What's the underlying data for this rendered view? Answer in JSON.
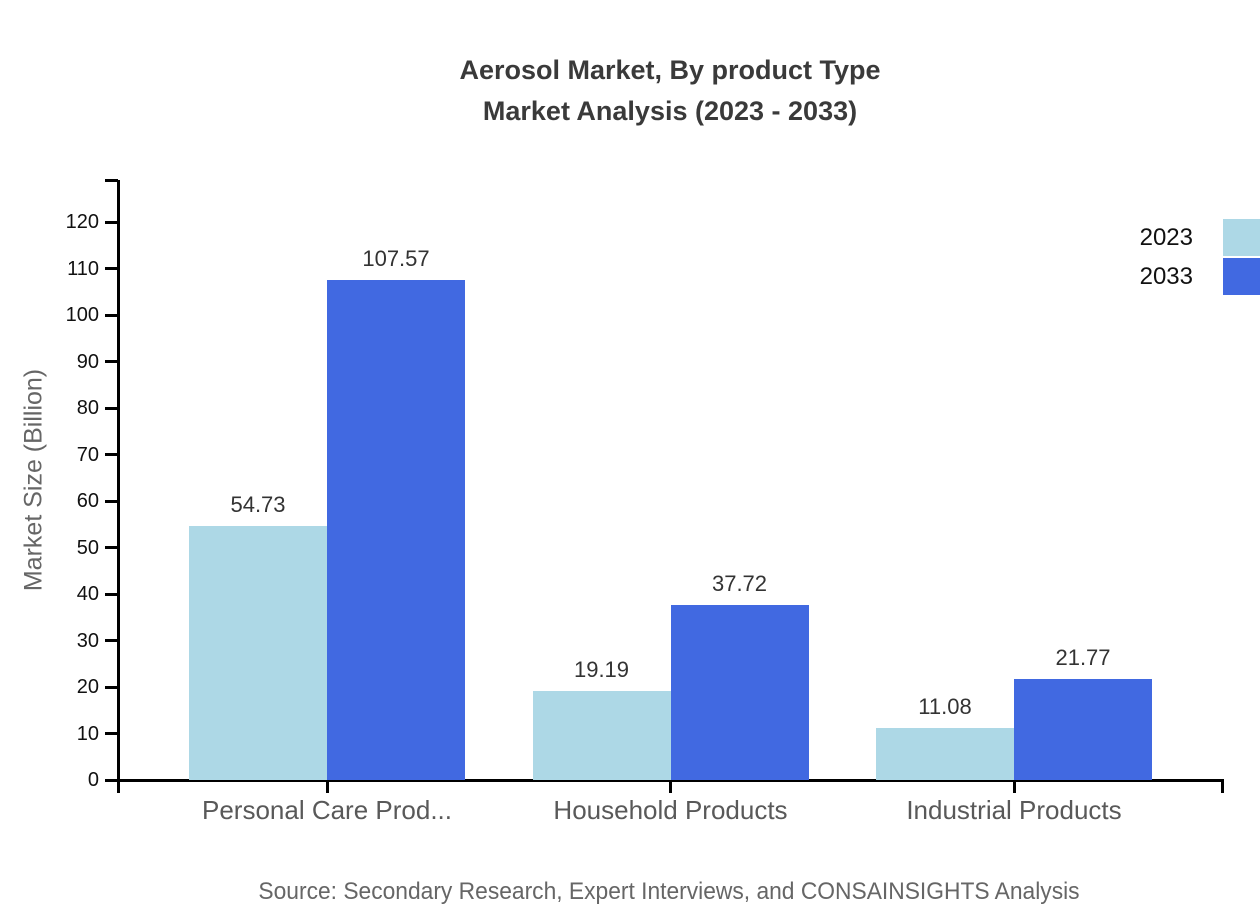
{
  "title": {
    "line1": "Aerosol Market, By product Type",
    "line2": "Market Analysis (2023 - 2033)"
  },
  "source": "Source: Secondary Research, Expert Interviews, and CONSAINSIGHTS Analysis",
  "colors": {
    "series_2023": "#ADD8E6",
    "series_2033": "#4169E1",
    "axis": "#000000",
    "title_text": "#3A3A3A",
    "category_text": "#595959",
    "value_text": "#333333",
    "axis_title_text": "#666666",
    "source_text": "#666666"
  },
  "chart_data": {
    "type": "bar",
    "title": "Aerosol Market, By product Type - Market Analysis (2023 - 2033)",
    "categories": [
      "Personal Care Prod...",
      "Household Products",
      "Industrial Products"
    ],
    "series": [
      {
        "name": "2023",
        "color": "#ADD8E6",
        "values": [
          54.73,
          19.19,
          11.08
        ]
      },
      {
        "name": "2033",
        "color": "#4169E1",
        "values": [
          107.57,
          37.72,
          21.77
        ]
      }
    ],
    "xlabel": "",
    "ylabel": "Market Size (Billion)",
    "ylim": [
      0,
      129
    ],
    "ytick_step": 10,
    "ytick_label_max": 120,
    "grid": false,
    "legend_position": "top-right",
    "value_labels": true,
    "value_label_decimals": 2
  }
}
